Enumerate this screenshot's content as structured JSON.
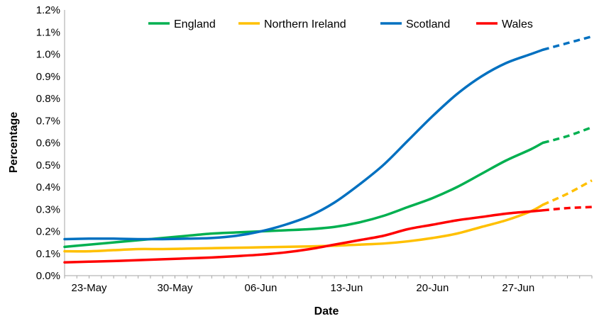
{
  "chart_data": {
    "type": "line",
    "xlabel": "Date",
    "ylabel": "Percentage",
    "x_tick_labels": [
      "23-May",
      "30-May",
      "06-Jun",
      "13-Jun",
      "20-Jun",
      "27-Jun"
    ],
    "x_tick_days": [
      0,
      7,
      14,
      21,
      28,
      35
    ],
    "x_range_days": [
      -2,
      41
    ],
    "y_tick_labels": [
      "0.0%",
      "0.1%",
      "0.2%",
      "0.3%",
      "0.4%",
      "0.5%",
      "0.6%",
      "0.7%",
      "0.8%",
      "0.9%",
      "1.0%",
      "1.1%",
      "1.2%"
    ],
    "ylim": [
      0,
      1.2
    ],
    "y_unit": "%",
    "grid": false,
    "legend_position": "top",
    "x_day_origin": "23-May",
    "solid_until_day": 37,
    "series": [
      {
        "name": "England",
        "color": "#00B050",
        "x": [
          -2,
          0,
          2,
          4,
          6,
          8,
          10,
          12,
          14,
          16,
          18,
          20,
          22,
          24,
          26,
          28,
          30,
          32,
          34,
          36,
          37,
          39,
          41
        ],
        "values": [
          0.13,
          0.14,
          0.15,
          0.16,
          0.17,
          0.18,
          0.19,
          0.195,
          0.2,
          0.205,
          0.21,
          0.22,
          0.24,
          0.27,
          0.31,
          0.35,
          0.4,
          0.46,
          0.52,
          0.57,
          0.6,
          0.63,
          0.67
        ]
      },
      {
        "name": "Northern Ireland",
        "color": "#FFC000",
        "x": [
          -2,
          0,
          2,
          4,
          6,
          8,
          10,
          12,
          14,
          16,
          18,
          20,
          22,
          24,
          26,
          28,
          30,
          32,
          34,
          36,
          37,
          39,
          41
        ],
        "values": [
          0.11,
          0.11,
          0.115,
          0.12,
          0.12,
          0.122,
          0.124,
          0.126,
          0.128,
          0.13,
          0.132,
          0.135,
          0.14,
          0.145,
          0.155,
          0.17,
          0.19,
          0.22,
          0.25,
          0.29,
          0.32,
          0.37,
          0.43
        ]
      },
      {
        "name": "Scotland",
        "color": "#0070C0",
        "x": [
          -2,
          0,
          2,
          4,
          6,
          8,
          10,
          12,
          14,
          16,
          18,
          20,
          22,
          24,
          26,
          28,
          30,
          32,
          34,
          36,
          37,
          39,
          41
        ],
        "values": [
          0.165,
          0.167,
          0.167,
          0.165,
          0.165,
          0.167,
          0.17,
          0.18,
          0.2,
          0.23,
          0.27,
          0.33,
          0.41,
          0.5,
          0.61,
          0.72,
          0.82,
          0.9,
          0.96,
          1.0,
          1.02,
          1.05,
          1.08
        ]
      },
      {
        "name": "Wales",
        "color": "#FF0000",
        "x": [
          -2,
          0,
          2,
          4,
          6,
          8,
          10,
          12,
          14,
          16,
          18,
          20,
          22,
          24,
          26,
          28,
          30,
          32,
          34,
          36,
          37,
          39,
          41
        ],
        "values": [
          0.06,
          0.063,
          0.066,
          0.07,
          0.074,
          0.078,
          0.082,
          0.088,
          0.095,
          0.105,
          0.12,
          0.14,
          0.16,
          0.18,
          0.21,
          0.23,
          0.25,
          0.265,
          0.28,
          0.29,
          0.295,
          0.305,
          0.31
        ]
      }
    ]
  }
}
